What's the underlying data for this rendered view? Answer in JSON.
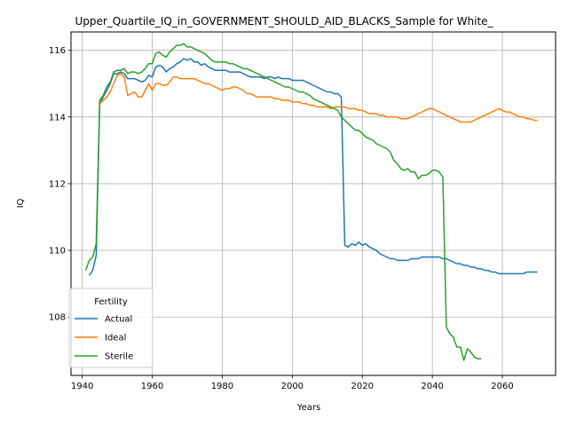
{
  "chart_data": {
    "type": "line",
    "title": "Upper_Quartile_IQ_in_GOVERNMENT_SHOULD_AID_BLACKS_Sample for White_",
    "xlabel": "Years",
    "ylabel": "IQ",
    "xlim": [
      1936.8,
      2075.2
    ],
    "ylim": [
      106.25,
      116.55
    ],
    "xticks": [
      1940,
      1960,
      1980,
      2000,
      2020,
      2040,
      2060
    ],
    "yticks": [
      108,
      110,
      112,
      114,
      116
    ],
    "grid": true,
    "legend": {
      "title": "Fertility",
      "placement": "lower-left"
    },
    "series": [
      {
        "name": "Actual",
        "color": "#1f77b4",
        "x": [
          1942,
          1943,
          1944,
          1945,
          1946,
          1947,
          1948,
          1949,
          1950,
          1951,
          1952,
          1953,
          1954,
          1955,
          1956,
          1957,
          1958,
          1959,
          1960,
          1961,
          1962,
          1963,
          1964,
          1965,
          1966,
          1967,
          1968,
          1969,
          1970,
          1971,
          1972,
          1973,
          1974,
          1975,
          1976,
          1977,
          1978,
          1979,
          1980,
          1981,
          1982,
          1983,
          1984,
          1985,
          1986,
          1987,
          1988,
          1989,
          1990,
          1991,
          1992,
          1993,
          1994,
          1995,
          1996,
          1997,
          1998,
          1999,
          2000,
          2001,
          2002,
          2003,
          2004,
          2005,
          2006,
          2007,
          2008,
          2009,
          2010,
          2011,
          2012,
          2013,
          2014,
          2015,
          2016,
          2017,
          2018,
          2019,
          2020,
          2021,
          2022,
          2023,
          2024,
          2025,
          2026,
          2027,
          2028,
          2029,
          2030,
          2031,
          2032,
          2033,
          2034,
          2035,
          2036,
          2037,
          2038,
          2039,
          2040,
          2041,
          2042,
          2043,
          2044,
          2045,
          2046,
          2047,
          2048,
          2049,
          2050,
          2051,
          2052,
          2053,
          2054,
          2055,
          2056,
          2057,
          2058,
          2059,
          2060,
          2061,
          2062,
          2063,
          2064,
          2065,
          2066,
          2067,
          2068,
          2069,
          2070
        ],
        "y": [
          109.25,
          109.4,
          109.85,
          114.4,
          114.6,
          114.8,
          115.0,
          115.3,
          115.3,
          115.35,
          115.3,
          115.15,
          115.15,
          115.15,
          115.1,
          115.05,
          115.1,
          115.25,
          115.2,
          115.5,
          115.55,
          115.5,
          115.35,
          115.45,
          115.5,
          115.6,
          115.65,
          115.75,
          115.7,
          115.75,
          115.65,
          115.65,
          115.55,
          115.6,
          115.5,
          115.45,
          115.4,
          115.4,
          115.4,
          115.4,
          115.35,
          115.35,
          115.35,
          115.35,
          115.3,
          115.25,
          115.2,
          115.2,
          115.2,
          115.2,
          115.15,
          115.2,
          115.2,
          115.15,
          115.2,
          115.15,
          115.15,
          115.15,
          115.1,
          115.1,
          115.1,
          115.1,
          115.05,
          115.0,
          114.95,
          114.9,
          114.85,
          114.8,
          114.75,
          114.75,
          114.7,
          114.7,
          114.6,
          110.15,
          110.1,
          110.2,
          110.15,
          110.25,
          110.15,
          110.2,
          110.1,
          110.05,
          110.0,
          109.9,
          109.85,
          109.8,
          109.75,
          109.75,
          109.7,
          109.7,
          109.7,
          109.7,
          109.75,
          109.75,
          109.75,
          109.8,
          109.8,
          109.8,
          109.8,
          109.8,
          109.8,
          109.75,
          109.75,
          109.7,
          109.65,
          109.6,
          109.6,
          109.55,
          109.55,
          109.5,
          109.5,
          109.45,
          109.45,
          109.4,
          109.4,
          109.35,
          109.35,
          109.3,
          109.3,
          109.3,
          109.3,
          109.3,
          109.3,
          109.3,
          109.3,
          109.35,
          109.35,
          109.35,
          109.35
        ],
        "y_note": ""
      },
      {
        "name": "Ideal",
        "color": "#ff7f0e",
        "x": [
          1945,
          1946,
          1947,
          1948,
          1949,
          1950,
          1951,
          1952,
          1953,
          1954,
          1955,
          1956,
          1957,
          1958,
          1959,
          1960,
          1961,
          1962,
          1963,
          1964,
          1965,
          1966,
          1967,
          1968,
          1969,
          1970,
          1971,
          1972,
          1973,
          1974,
          1975,
          1976,
          1977,
          1978,
          1979,
          1980,
          1981,
          1982,
          1983,
          1984,
          1985,
          1986,
          1987,
          1988,
          1989,
          1990,
          1991,
          1992,
          1993,
          1994,
          1995,
          1996,
          1997,
          1998,
          1999,
          2000,
          2001,
          2002,
          2003,
          2004,
          2005,
          2006,
          2007,
          2008,
          2009,
          2010,
          2011,
          2012,
          2013,
          2014,
          2015,
          2016,
          2017,
          2018,
          2019,
          2020,
          2021,
          2022,
          2023,
          2024,
          2025,
          2026,
          2027,
          2028,
          2029,
          2030,
          2031,
          2032,
          2033,
          2034,
          2035,
          2036,
          2037,
          2038,
          2039,
          2040,
          2041,
          2042,
          2043,
          2044,
          2045,
          2046,
          2047,
          2048,
          2049,
          2050,
          2051,
          2052,
          2053,
          2054,
          2055,
          2056,
          2057,
          2058,
          2059,
          2060,
          2061,
          2062,
          2063,
          2064,
          2065,
          2066,
          2067,
          2068,
          2069,
          2070
        ],
        "y": [
          114.4,
          114.5,
          114.6,
          114.75,
          115.0,
          115.25,
          115.3,
          115.2,
          114.65,
          114.7,
          114.75,
          114.6,
          114.6,
          114.8,
          115.0,
          114.8,
          115.0,
          115.0,
          114.95,
          114.95,
          115.05,
          115.2,
          115.2,
          115.15,
          115.15,
          115.15,
          115.15,
          115.15,
          115.1,
          115.05,
          115.0,
          115.0,
          114.95,
          114.9,
          114.85,
          114.8,
          114.85,
          114.85,
          114.9,
          114.9,
          114.85,
          114.8,
          114.7,
          114.7,
          114.65,
          114.6,
          114.6,
          114.6,
          114.6,
          114.6,
          114.55,
          114.55,
          114.5,
          114.5,
          114.5,
          114.45,
          114.45,
          114.45,
          114.4,
          114.4,
          114.35,
          114.35,
          114.3,
          114.3,
          114.3,
          114.3,
          114.25,
          114.3,
          114.3,
          114.3,
          114.3,
          114.25,
          114.25,
          114.25,
          114.2,
          114.2,
          114.15,
          114.1,
          114.1,
          114.1,
          114.05,
          114.05,
          114.0,
          114.0,
          114.0,
          114.0,
          113.95,
          113.95,
          113.95,
          114.0,
          114.05,
          114.1,
          114.15,
          114.2,
          114.25,
          114.25,
          114.2,
          114.15,
          114.1,
          114.05,
          114.0,
          113.95,
          113.9,
          113.85,
          113.85,
          113.85,
          113.85,
          113.9,
          113.95,
          114.0,
          114.05,
          114.1,
          114.15,
          114.2,
          114.25,
          114.2,
          114.15,
          114.15,
          114.1,
          114.05,
          114.0,
          114.0,
          113.95,
          113.95,
          113.9,
          113.9
        ],
        "y_note": ""
      },
      {
        "name": "Sterile",
        "color": "#2ca02c",
        "x": [
          1941,
          1942,
          1943,
          1944,
          1945,
          1946,
          1947,
          1948,
          1949,
          1950,
          1951,
          1952,
          1953,
          1954,
          1955,
          1956,
          1957,
          1958,
          1959,
          1960,
          1961,
          1962,
          1963,
          1964,
          1965,
          1966,
          1967,
          1968,
          1969,
          1970,
          1971,
          1972,
          1973,
          1974,
          1975,
          1976,
          1977,
          1978,
          1979,
          1980,
          1981,
          1982,
          1983,
          1984,
          1985,
          1986,
          1987,
          1988,
          1989,
          1990,
          1991,
          1992,
          1993,
          1994,
          1995,
          1996,
          1997,
          1998,
          1999,
          2000,
          2001,
          2002,
          2003,
          2004,
          2005,
          2006,
          2007,
          2008,
          2009,
          2010,
          2011,
          2012,
          2013,
          2014,
          2015,
          2016,
          2017,
          2018,
          2019,
          2020,
          2021,
          2022,
          2023,
          2024,
          2025,
          2026,
          2027,
          2028,
          2029,
          2030,
          2031,
          2032,
          2033,
          2034,
          2035,
          2036,
          2037,
          2038,
          2039,
          2040,
          2041,
          2042,
          2043,
          2044,
          2045,
          2046,
          2047,
          2048,
          2049,
          2050,
          2051,
          2052,
          2053,
          2054
        ],
        "y": [
          109.4,
          109.7,
          109.8,
          110.2,
          114.5,
          114.65,
          114.9,
          115.05,
          115.35,
          115.4,
          115.4,
          115.45,
          115.3,
          115.35,
          115.35,
          115.3,
          115.35,
          115.45,
          115.6,
          115.6,
          115.9,
          115.95,
          115.85,
          115.8,
          115.95,
          116.05,
          116.15,
          116.15,
          116.2,
          116.1,
          116.1,
          116.05,
          116.0,
          115.95,
          115.9,
          115.8,
          115.7,
          115.65,
          115.65,
          115.65,
          115.65,
          115.6,
          115.6,
          115.55,
          115.5,
          115.45,
          115.45,
          115.4,
          115.35,
          115.3,
          115.25,
          115.2,
          115.15,
          115.1,
          115.05,
          115.0,
          114.95,
          114.9,
          114.9,
          114.85,
          114.8,
          114.75,
          114.75,
          114.7,
          114.65,
          114.55,
          114.5,
          114.45,
          114.4,
          114.35,
          114.3,
          114.25,
          114.2,
          114.0,
          113.9,
          113.8,
          113.7,
          113.6,
          113.6,
          113.5,
          113.4,
          113.35,
          113.3,
          113.2,
          113.15,
          113.1,
          113.05,
          112.95,
          112.7,
          112.6,
          112.45,
          112.4,
          112.45,
          112.35,
          112.35,
          112.15,
          112.25,
          112.25,
          112.3,
          112.4,
          112.4,
          112.35,
          112.2,
          107.7,
          107.5,
          107.4,
          107.1,
          107.1,
          106.7,
          107.05,
          106.95,
          106.8,
          106.75,
          106.75
        ],
        "y_note": ""
      }
    ]
  }
}
